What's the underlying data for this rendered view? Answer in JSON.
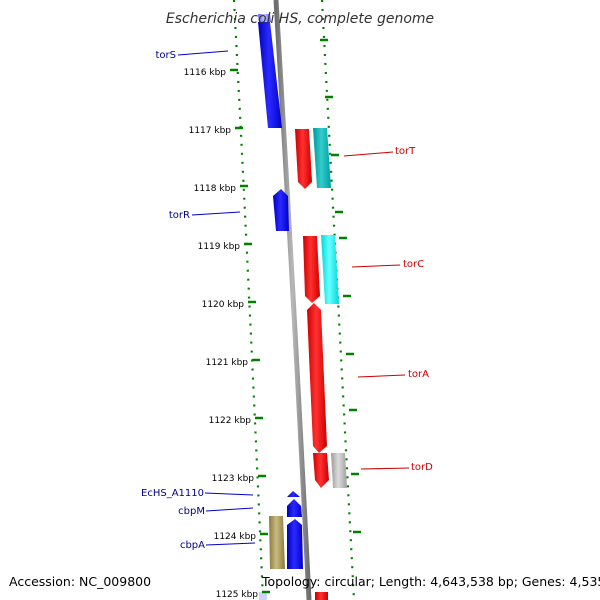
{
  "title": "Escherichia coli HS, complete genome",
  "footer": {
    "accession": "Accession: NC_009800",
    "summary": "Topology: circular; Length: 4,643,538 bp; Genes: 4,535"
  },
  "colors": {
    "forward_cds": "#0000ee",
    "reverse_cds": "#ee0000",
    "cyan_feature": "#00cccc",
    "grey_feature": "#b4b4b4",
    "olive_feature": "#a89a5a",
    "backbone": "#8c8c8c",
    "tick": "#008000",
    "forward_label": "#00008b",
    "reverse_label": "#cc0000"
  },
  "ticks": [
    {
      "kbp": 1116,
      "label": "1116 kbp"
    },
    {
      "kbp": 1117,
      "label": "1117 kbp"
    },
    {
      "kbp": 1118,
      "label": "1118 kbp"
    },
    {
      "kbp": 1119,
      "label": "1119 kbp"
    },
    {
      "kbp": 1120,
      "label": "1120 kbp"
    },
    {
      "kbp": 1121,
      "label": "1121 kbp"
    },
    {
      "kbp": 1122,
      "label": "1122 kbp"
    },
    {
      "kbp": 1123,
      "label": "1123 kbp"
    },
    {
      "kbp": 1124,
      "label": "1124 kbp"
    },
    {
      "kbp": 1125,
      "label": "1125 kbp"
    }
  ],
  "genes": [
    {
      "label": "torS",
      "strand": "forward"
    },
    {
      "label": "torR",
      "strand": "forward"
    },
    {
      "label": "EcHS_A1110",
      "strand": "forward"
    },
    {
      "label": "cbpM",
      "strand": "forward"
    },
    {
      "label": "cbpA",
      "strand": "forward"
    },
    {
      "label": "torT",
      "strand": "reverse"
    },
    {
      "label": "torC",
      "strand": "reverse"
    },
    {
      "label": "torA",
      "strand": "reverse"
    },
    {
      "label": "torD",
      "strand": "reverse"
    }
  ]
}
